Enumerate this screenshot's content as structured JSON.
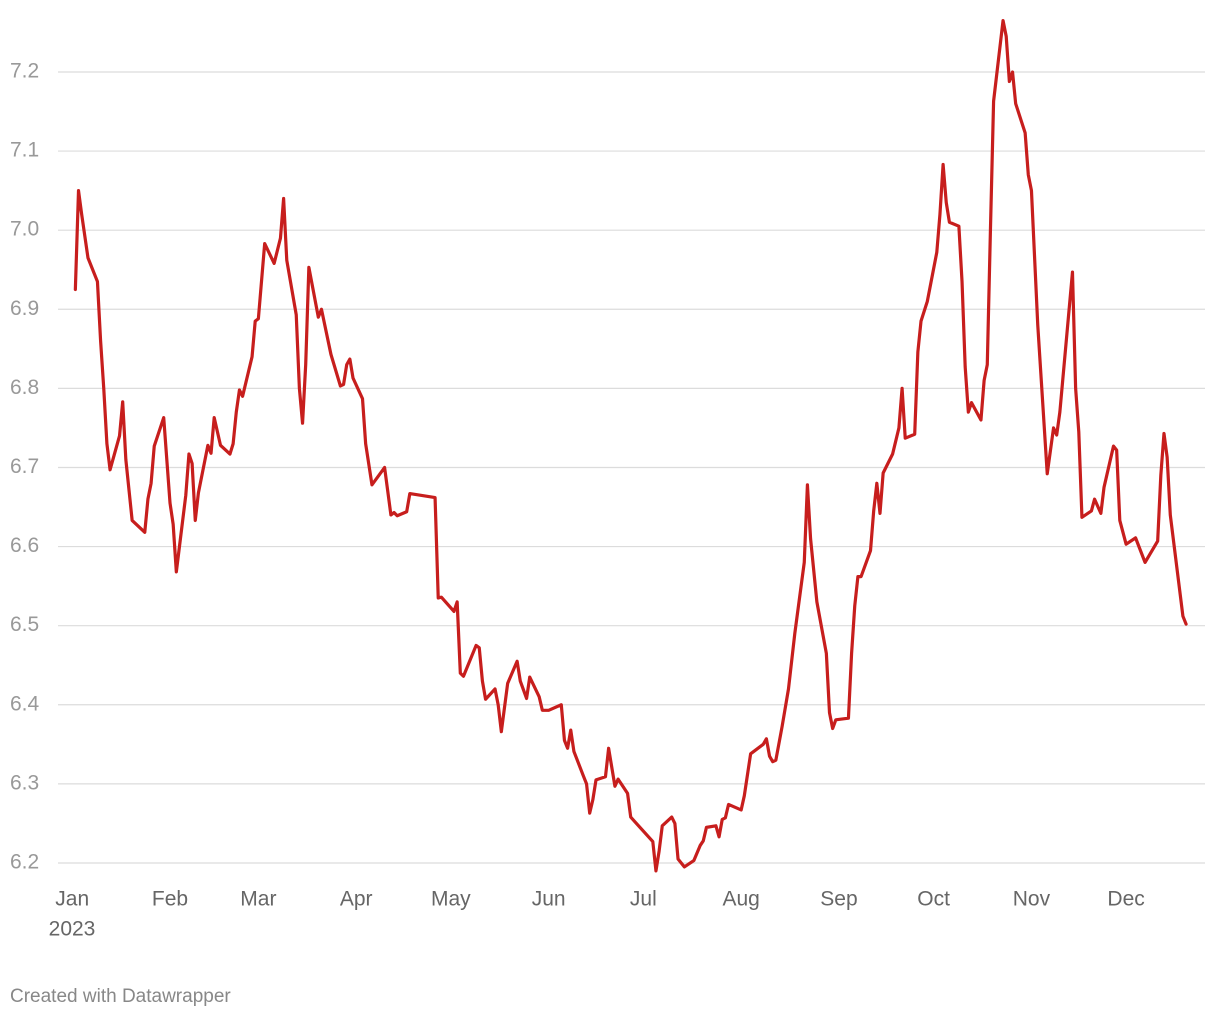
{
  "chart_data": {
    "type": "line",
    "x": [
      1,
      2,
      3,
      5,
      8,
      9,
      10,
      11,
      12,
      15,
      16,
      17,
      19,
      23,
      24,
      25,
      26,
      29,
      31,
      32,
      33,
      36,
      37,
      38,
      39,
      40,
      43,
      44,
      45,
      47,
      50,
      51,
      52,
      53,
      54,
      57,
      58,
      59,
      61,
      64,
      66,
      67,
      68,
      71,
      72,
      73,
      74,
      75,
      78,
      79,
      82,
      85,
      86,
      87,
      88,
      89,
      92,
      93,
      95,
      99,
      101,
      102,
      103,
      106,
      107,
      115,
      116,
      117,
      121,
      122,
      123,
      124,
      128,
      129,
      130,
      131,
      134,
      135,
      136,
      138,
      141,
      142,
      144,
      145,
      148,
      149,
      151,
      155,
      156,
      157,
      158,
      159,
      162,
      163,
      164,
      165,
      166,
      169,
      170,
      172,
      173,
      176,
      177,
      184,
      185,
      186,
      187,
      190,
      191,
      192,
      194,
      197,
      199,
      200,
      201,
      204,
      205,
      206,
      207,
      208,
      212,
      213,
      215,
      219,
      220,
      221,
      222,
      223,
      225,
      227,
      229,
      232,
      233,
      234,
      236,
      239,
      240,
      241,
      242,
      246,
      247,
      248,
      249,
      250,
      253,
      254,
      255,
      256,
      257,
      260,
      262,
      263,
      264,
      267,
      268,
      269,
      271,
      274,
      275,
      276,
      277,
      278,
      281,
      282,
      283,
      284,
      285,
      288,
      289,
      290,
      291,
      292,
      295,
      296,
      297,
      298,
      299,
      302,
      303,
      304,
      306,
      309,
      311,
      312,
      313,
      317,
      318,
      319,
      320,
      323,
      324,
      326,
      327,
      330,
      331,
      332,
      334,
      337,
      340,
      344,
      345,
      346,
      347,
      348,
      352,
      353
    ],
    "values": [
      6.925,
      7.05,
      7.02,
      6.965,
      6.935,
      6.86,
      6.8,
      6.73,
      6.697,
      6.74,
      6.783,
      6.71,
      6.633,
      6.618,
      6.66,
      6.68,
      6.727,
      6.763,
      6.655,
      6.628,
      6.568,
      6.665,
      6.717,
      6.705,
      6.633,
      6.668,
      6.728,
      6.718,
      6.763,
      6.728,
      6.717,
      6.73,
      6.77,
      6.798,
      6.79,
      6.84,
      6.885,
      6.888,
      6.983,
      6.958,
      6.99,
      7.04,
      6.962,
      6.893,
      6.8,
      6.756,
      6.83,
      6.953,
      6.89,
      6.9,
      6.843,
      6.803,
      6.805,
      6.83,
      6.837,
      6.813,
      6.787,
      6.73,
      6.678,
      6.7,
      6.64,
      6.643,
      6.639,
      6.644,
      6.667,
      6.662,
      6.535,
      6.536,
      6.518,
      6.53,
      6.44,
      6.436,
      6.475,
      6.472,
      6.43,
      6.407,
      6.42,
      6.4,
      6.366,
      6.427,
      6.455,
      6.43,
      6.408,
      6.435,
      6.41,
      6.393,
      6.393,
      6.4,
      6.355,
      6.345,
      6.368,
      6.341,
      6.31,
      6.3,
      6.263,
      6.28,
      6.305,
      6.309,
      6.345,
      6.297,
      6.306,
      6.288,
      6.258,
      6.227,
      6.19,
      6.215,
      6.247,
      6.258,
      6.25,
      6.205,
      6.195,
      6.203,
      6.222,
      6.228,
      6.245,
      6.247,
      6.233,
      6.255,
      6.257,
      6.274,
      6.267,
      6.285,
      6.338,
      6.35,
      6.357,
      6.335,
      6.328,
      6.33,
      6.373,
      6.42,
      6.49,
      6.58,
      6.678,
      6.61,
      6.53,
      6.465,
      6.39,
      6.37,
      6.381,
      6.383,
      6.465,
      6.525,
      6.562,
      6.562,
      6.595,
      6.645,
      6.68,
      6.642,
      6.693,
      6.717,
      6.75,
      6.8,
      6.737,
      6.742,
      6.846,
      6.885,
      6.91,
      6.972,
      7.02,
      7.083,
      7.035,
      7.01,
      7.005,
      6.935,
      6.827,
      6.77,
      6.782,
      6.76,
      6.81,
      6.83,
      7.0,
      7.163,
      7.265,
      7.245,
      7.188,
      7.2,
      7.16,
      7.123,
      7.07,
      7.05,
      6.88,
      6.692,
      6.75,
      6.741,
      6.77,
      6.947,
      6.8,
      6.745,
      6.637,
      6.645,
      6.66,
      6.642,
      6.675,
      6.727,
      6.722,
      6.633,
      6.603,
      6.611,
      6.58,
      6.607,
      6.69,
      6.743,
      6.713,
      6.64,
      6.512,
      6.502
    ],
    "color": "#c71e1d",
    "xlim": [
      -4.5,
      359
    ],
    "xticks": [
      {
        "value": 0,
        "label": "Jan"
      },
      {
        "value": 31,
        "label": "Feb"
      },
      {
        "value": 59,
        "label": "Mar"
      },
      {
        "value": 90,
        "label": "Apr"
      },
      {
        "value": 120,
        "label": "May"
      },
      {
        "value": 151,
        "label": "Jun"
      },
      {
        "value": 181,
        "label": "Jul"
      },
      {
        "value": 212,
        "label": "Aug"
      },
      {
        "value": 243,
        "label": "Sep"
      },
      {
        "value": 273,
        "label": "Oct"
      },
      {
        "value": 304,
        "label": "Nov"
      },
      {
        "value": 334,
        "label": "Dec"
      }
    ],
    "year_label": "2023",
    "ylim": [
      6.17,
      7.27
    ],
    "yticks": [
      6.2,
      6.3,
      6.4,
      6.5,
      6.6,
      6.7,
      6.8,
      6.9,
      {
        "value": 7,
        "label": "7.0"
      },
      7.1,
      7.2
    ],
    "grid": true,
    "footer": "Created with Datawrapper"
  }
}
